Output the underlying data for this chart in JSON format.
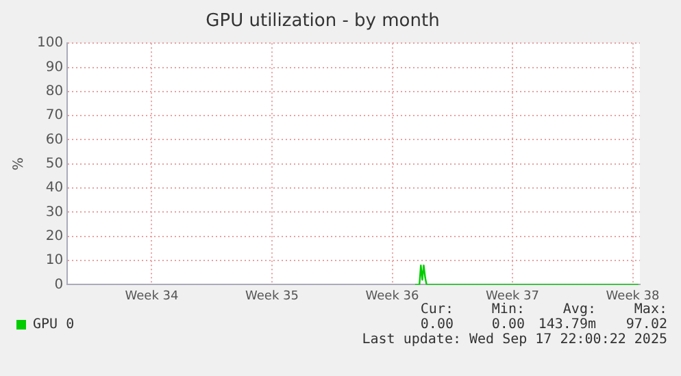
{
  "chart_data": {
    "type": "line",
    "title": "GPU utilization - by month",
    "ylabel": "%",
    "x": [
      "2025-09-02T08:00",
      "2025-09-02T14:00",
      "2025-09-02T16:00",
      "2025-09-02T18:00",
      "2025-09-02T20:00",
      "2025-09-02T22:00",
      "2025-09-03T00:00",
      "2025-09-03T02:00",
      "2025-09-03T04:00",
      "2025-09-15T08:00"
    ],
    "series": [
      {
        "name": "GPU 0",
        "color": "#00cc00",
        "values": [
          0,
          0,
          8,
          2,
          8,
          3,
          0,
          0,
          0,
          0
        ]
      }
    ],
    "xlim": [
      "2025-08-13T02:00",
      "2025-09-15T10:00"
    ],
    "xticks": [
      {
        "value": "2025-08-18",
        "label": "Week 34"
      },
      {
        "value": "2025-08-25",
        "label": "Week 35"
      },
      {
        "value": "2025-09-01",
        "label": "Week 36"
      },
      {
        "value": "2025-09-08",
        "label": "Week 37"
      },
      {
        "value": "2025-09-15",
        "label": "Week 38"
      }
    ],
    "ylim": [
      0,
      100
    ],
    "yticks": [
      0,
      10,
      20,
      30,
      40,
      50,
      60,
      70,
      80,
      90,
      100
    ],
    "grid": true,
    "legend": "bottom",
    "marker": "none",
    "line_style": "solid",
    "annotations": [
      "Cur:",
      "Min:",
      "Avg:",
      "Max:",
      "0.00",
      "0.00",
      "143.79m",
      "97.02",
      "Last update: Wed Sep 17 22:00:22 2025"
    ]
  }
}
